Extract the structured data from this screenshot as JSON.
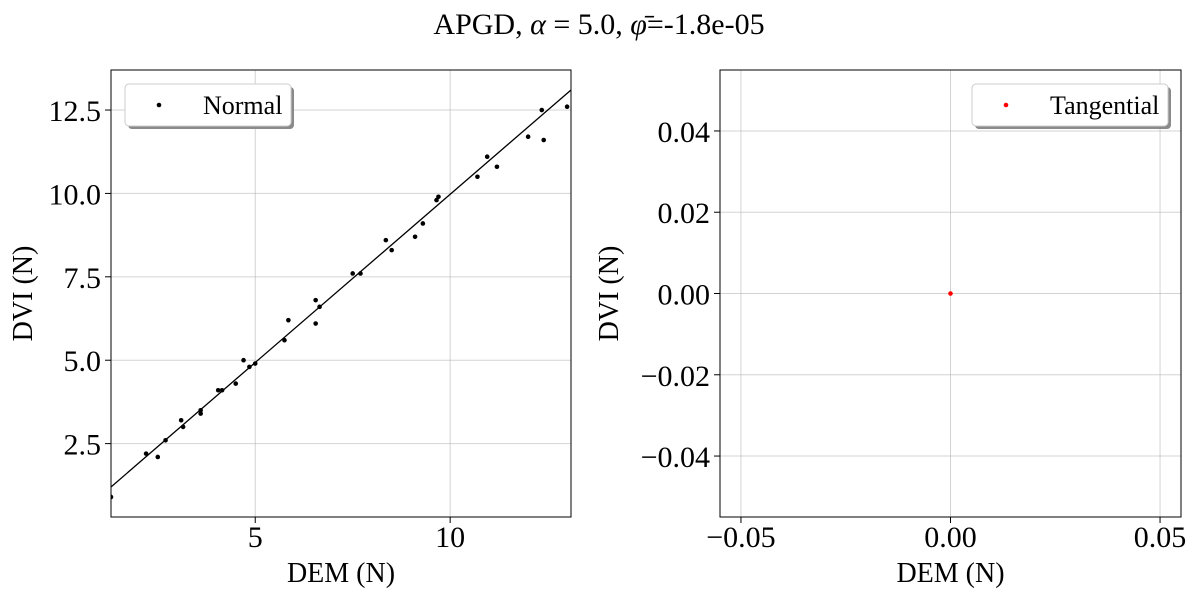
{
  "figure": {
    "title_prefix": "APGD, ",
    "alpha_symbol": "α",
    "alpha_eq": " = 5.0, ",
    "phi_symbol": "φ̄",
    "phi_eq": "=-1.8e-05"
  },
  "colors": {
    "normal": "#000000",
    "tangential": "#ff0000",
    "grid": "#b0b0b0",
    "fit_line": "#000000"
  },
  "chart_data": [
    {
      "type": "scatter",
      "title": "",
      "xlabel": "DEM (N)",
      "ylabel": "DVI (N)",
      "xlim": [
        1.3,
        13.1
      ],
      "ylim": [
        0.3,
        13.7
      ],
      "xticks": [
        5,
        10
      ],
      "xtick_labels": [
        "5",
        "10"
      ],
      "yticks": [
        2.5,
        5.0,
        7.5,
        10.0,
        12.5
      ],
      "ytick_labels": [
        "2.5",
        "5.0",
        "7.5",
        "10.0",
        "12.5"
      ],
      "grid": true,
      "legend_position": "upper-left",
      "series": [
        {
          "name": "Normal",
          "color": "#000000",
          "points": [
            [
              1.3,
              0.9
            ],
            [
              2.2,
              2.2
            ],
            [
              2.5,
              2.1
            ],
            [
              2.7,
              2.6
            ],
            [
              3.1,
              3.2
            ],
            [
              3.15,
              3.0
            ],
            [
              3.6,
              3.5
            ],
            [
              3.6,
              3.4
            ],
            [
              4.05,
              4.1
            ],
            [
              4.15,
              4.1
            ],
            [
              4.5,
              4.3
            ],
            [
              4.7,
              5.0
            ],
            [
              4.85,
              4.8
            ],
            [
              5.0,
              4.9
            ],
            [
              5.75,
              5.6
            ],
            [
              5.85,
              6.2
            ],
            [
              6.55,
              6.8
            ],
            [
              6.55,
              6.1
            ],
            [
              6.65,
              6.6
            ],
            [
              7.5,
              7.6
            ],
            [
              7.7,
              7.6
            ],
            [
              8.35,
              8.6
            ],
            [
              8.5,
              8.3
            ],
            [
              9.1,
              8.7
            ],
            [
              9.3,
              9.1
            ],
            [
              9.65,
              9.8
            ],
            [
              9.7,
              9.9
            ],
            [
              10.7,
              10.5
            ],
            [
              10.95,
              11.1
            ],
            [
              11.2,
              10.8
            ],
            [
              12.0,
              11.7
            ],
            [
              12.35,
              12.5
            ],
            [
              12.4,
              11.6
            ],
            [
              13.0,
              12.6
            ]
          ]
        }
      ],
      "fit_line": {
        "x": [
          1.3,
          13.1
        ],
        "y": [
          1.2,
          13.1
        ]
      }
    },
    {
      "type": "scatter",
      "title": "",
      "xlabel": "DEM (N)",
      "ylabel": "DVI (N)",
      "xlim": [
        -0.055,
        0.055
      ],
      "ylim": [
        -0.055,
        0.055
      ],
      "xticks": [
        -0.05,
        0.0,
        0.05
      ],
      "xtick_labels": [
        "−0.05",
        "0.00",
        "0.05"
      ],
      "yticks": [
        -0.04,
        -0.02,
        0.0,
        0.02,
        0.04
      ],
      "ytick_labels": [
        "−0.04",
        "−0.02",
        "0.00",
        "0.02",
        "0.04"
      ],
      "grid": true,
      "legend_position": "upper-right",
      "series": [
        {
          "name": "Tangential",
          "color": "#ff0000",
          "points": [
            [
              0.0,
              0.0
            ]
          ]
        }
      ]
    }
  ]
}
